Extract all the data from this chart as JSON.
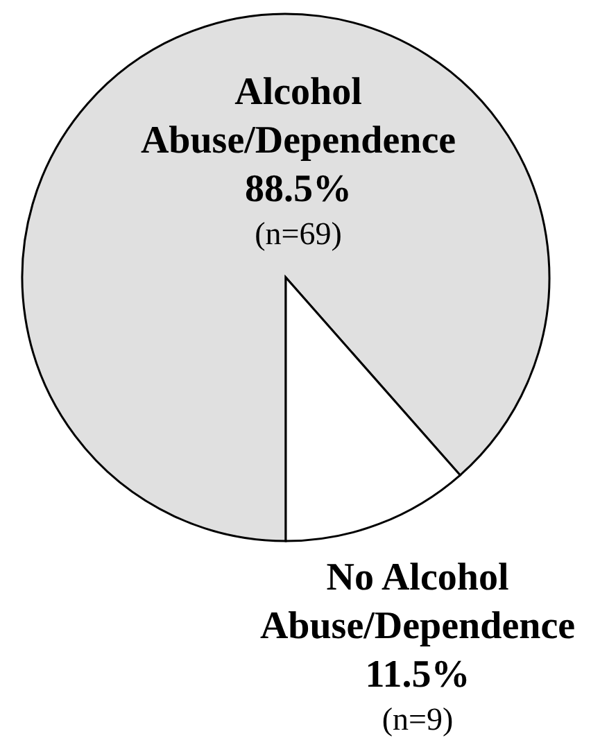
{
  "chart_data": {
    "type": "pie",
    "categories": [
      "Alcohol Abuse/Dependence",
      "No Alcohol Abuse/Dependence"
    ],
    "values": [
      88.5,
      11.5
    ],
    "colors": [
      "#e0e0e0",
      "#ffffff"
    ],
    "value_labels": [
      "88.5%",
      "11.5%"
    ],
    "annotations": [
      "(n=69)",
      "(n=9)"
    ]
  }
}
